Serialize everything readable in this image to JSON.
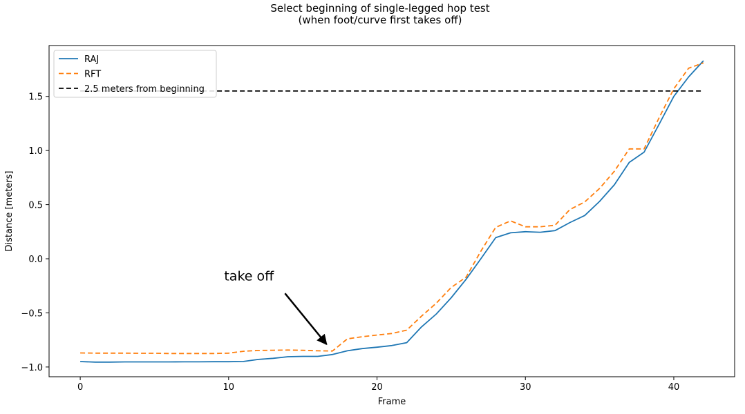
{
  "chart_data": {
    "type": "line",
    "title": "Select beginning of single-legged hop test",
    "subtitle": "(when foot/curve first takes off)",
    "xlabel": "Frame",
    "ylabel": "Distance [meters]",
    "xlim": [
      -2.1,
      44.1
    ],
    "ylim": [
      -1.09,
      1.97
    ],
    "xticks": [
      0,
      10,
      20,
      30,
      40
    ],
    "xtick_labels": [
      "0",
      "10",
      "20",
      "30",
      "40"
    ],
    "yticks": [
      -1.0,
      -0.5,
      0.0,
      0.5,
      1.0,
      1.5
    ],
    "ytick_labels": [
      "−1.0",
      "−0.5",
      "0.0",
      "0.5",
      "1.0",
      "1.5"
    ],
    "grid": false,
    "legend_position": "top-left",
    "series": [
      {
        "name": "RAJ",
        "color": "#1f77b4",
        "style": "solid",
        "x": [
          0,
          1,
          2,
          3,
          4,
          5,
          6,
          7,
          8,
          9,
          10,
          11,
          12,
          13,
          14,
          15,
          16,
          17,
          18,
          19,
          20,
          21,
          22,
          23,
          24,
          25,
          26,
          27,
          28,
          29,
          30,
          31,
          32,
          33,
          34,
          35,
          36,
          37,
          38,
          39,
          40,
          41,
          42
        ],
        "values": [
          -0.95,
          -0.955,
          -0.955,
          -0.953,
          -0.953,
          -0.953,
          -0.953,
          -0.952,
          -0.952,
          -0.951,
          -0.951,
          -0.949,
          -0.93,
          -0.92,
          -0.905,
          -0.902,
          -0.902,
          -0.885,
          -0.85,
          -0.83,
          -0.817,
          -0.802,
          -0.775,
          -0.63,
          -0.51,
          -0.36,
          -0.19,
          0.0,
          0.195,
          0.24,
          0.25,
          0.245,
          0.26,
          0.335,
          0.4,
          0.53,
          0.685,
          0.89,
          0.985,
          1.24,
          1.5,
          1.68,
          1.83
        ]
      },
      {
        "name": "RFT",
        "color": "#ff7f0e",
        "style": "dashed",
        "x": [
          0,
          1,
          2,
          3,
          4,
          5,
          6,
          7,
          8,
          9,
          10,
          11,
          12,
          13,
          14,
          15,
          16,
          17,
          18,
          19,
          20,
          21,
          22,
          23,
          24,
          25,
          26,
          27,
          28,
          29,
          30,
          31,
          32,
          33,
          34,
          35,
          36,
          37,
          38,
          39,
          40,
          41,
          42
        ],
        "values": [
          -0.87,
          -0.872,
          -0.872,
          -0.872,
          -0.873,
          -0.873,
          -0.875,
          -0.875,
          -0.875,
          -0.875,
          -0.872,
          -0.855,
          -0.847,
          -0.845,
          -0.843,
          -0.846,
          -0.85,
          -0.852,
          -0.74,
          -0.72,
          -0.705,
          -0.69,
          -0.66,
          -0.53,
          -0.41,
          -0.265,
          -0.17,
          0.07,
          0.29,
          0.35,
          0.295,
          0.295,
          0.31,
          0.455,
          0.525,
          0.65,
          0.81,
          1.015,
          1.015,
          1.3,
          1.57,
          1.76,
          1.81
        ]
      },
      {
        "name": "2.5 meters from beginning",
        "color": "#000000",
        "style": "dashed",
        "x": [
          0,
          42
        ],
        "values": [
          1.55,
          1.55
        ]
      }
    ],
    "annotations": [
      {
        "text": "take off",
        "text_at": [
          9.7,
          -0.2
        ],
        "arrow_from": [
          13.8,
          -0.32
        ],
        "arrow_to": [
          16.6,
          -0.79
        ]
      }
    ]
  }
}
